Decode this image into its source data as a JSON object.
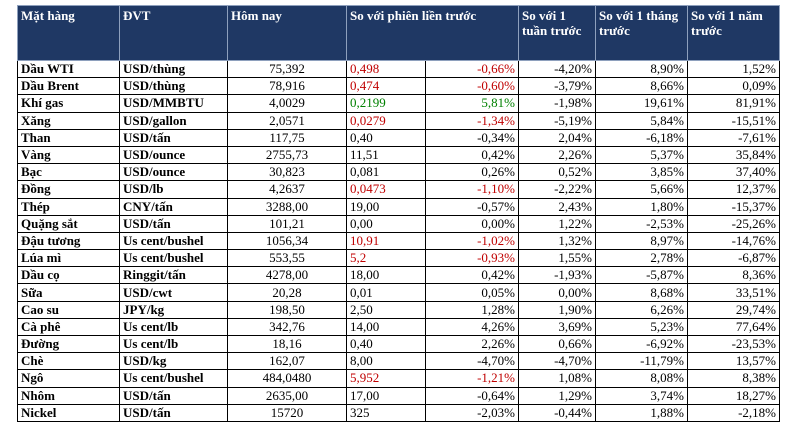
{
  "headers": {
    "item": "Mặt hàng",
    "unit": "ĐVT",
    "today": "Hôm nay",
    "prev_session": "So với phiên liền trước",
    "week": "So với 1 tuần trước",
    "month": "So với 1 tháng trước",
    "year": "So với 1 năm trước"
  },
  "rows": [
    {
      "item": "Dầu WTI",
      "unit": "USD/thùng",
      "today": "75,392",
      "abs": "0,498",
      "abs_color": "neg",
      "pct": "-0,66%",
      "pct_color": "neg",
      "week": "-4,20%",
      "month": "8,90%",
      "year": "1,52%"
    },
    {
      "item": "Dầu Brent",
      "unit": "USD/thùng",
      "today": "78,916",
      "abs": "0,474",
      "abs_color": "neg",
      "pct": "-0,60%",
      "pct_color": "neg",
      "week": "-3,79%",
      "month": "8,66%",
      "year": "0,09%"
    },
    {
      "item": "Khí gas",
      "unit": "USD/MMBTU",
      "today": "4,0029",
      "abs": "0,2199",
      "abs_color": "pos",
      "pct": "5,81%",
      "pct_color": "pos",
      "week": "-1,98%",
      "month": "19,61%",
      "year": "81,91%"
    },
    {
      "item": "Xăng",
      "unit": "USD/gallon",
      "today": "2,0571",
      "abs": "0,0279",
      "abs_color": "neg",
      "pct": "-1,34%",
      "pct_color": "neg",
      "week": "-5,19%",
      "month": "5,84%",
      "year": "-15,51%"
    },
    {
      "item": "Than",
      "unit": "USD/tấn",
      "today": "117,75",
      "abs": "0,40",
      "abs_color": "",
      "pct": "-0,34%",
      "pct_color": "",
      "week": "2,04%",
      "month": "-6,18%",
      "year": "-7,61%"
    },
    {
      "item": "Vàng",
      "unit": "USD/ounce",
      "today": "2755,73",
      "abs": "11,51",
      "abs_color": "",
      "pct": "0,42%",
      "pct_color": "",
      "week": "2,26%",
      "month": "5,37%",
      "year": "35,84%"
    },
    {
      "item": "Bạc",
      "unit": "USD/ounce",
      "today": "30,823",
      "abs": "0,081",
      "abs_color": "",
      "pct": "0,26%",
      "pct_color": "",
      "week": "0,52%",
      "month": "3,85%",
      "year": "37,40%"
    },
    {
      "item": "Đồng",
      "unit": "USD/lb",
      "today": "4,2637",
      "abs": "0,0473",
      "abs_color": "neg",
      "pct": "-1,10%",
      "pct_color": "neg",
      "week": "-2,22%",
      "month": "5,66%",
      "year": "12,37%"
    },
    {
      "item": "Thép",
      "unit": "CNY/tấn",
      "today": "3288,00",
      "abs": "19,00",
      "abs_color": "",
      "pct": "-0,57%",
      "pct_color": "",
      "week": "2,43%",
      "month": "1,80%",
      "year": "-15,37%"
    },
    {
      "item": "Quặng sắt",
      "unit": "USD/tấn",
      "today": "101,21",
      "abs": "0,00",
      "abs_color": "",
      "pct": "0,00%",
      "pct_color": "",
      "week": "1,22%",
      "month": "-2,53%",
      "year": "-25,26%"
    },
    {
      "item": "Đậu tương",
      "unit": "Us cent/bushel",
      "today": "1056,34",
      "abs": "10,91",
      "abs_color": "neg",
      "pct": "-1,02%",
      "pct_color": "neg",
      "week": "1,32%",
      "month": "8,97%",
      "year": "-14,76%"
    },
    {
      "item": "Lúa mì",
      "unit": "Us cent/bushel",
      "today": "553,55",
      "abs": "5,2",
      "abs_color": "neg",
      "pct": "-0,93%",
      "pct_color": "neg",
      "week": "1,55%",
      "month": "2,78%",
      "year": "-6,87%"
    },
    {
      "item": "Dầu cọ",
      "unit": "Ringgit/tấn",
      "today": "4278,00",
      "abs": "18,00",
      "abs_color": "",
      "pct": "0,42%",
      "pct_color": "",
      "week": "-1,93%",
      "month": "-5,87%",
      "year": "8,36%"
    },
    {
      "item": "Sữa",
      "unit": "USD/cwt",
      "today": "20,28",
      "abs": "0,01",
      "abs_color": "",
      "pct": "0,05%",
      "pct_color": "",
      "week": "0,00%",
      "month": "8,68%",
      "year": "33,51%"
    },
    {
      "item": "Cao su",
      "unit": "JPY/kg",
      "today": "198,50",
      "abs": "2,50",
      "abs_color": "",
      "pct": "1,28%",
      "pct_color": "",
      "week": "1,90%",
      "month": "6,26%",
      "year": "29,74%"
    },
    {
      "item": "Cà phê",
      "unit": "Us cent/lb",
      "today": "342,76",
      "abs": "14,00",
      "abs_color": "",
      "pct": "4,26%",
      "pct_color": "",
      "week": "3,69%",
      "month": "5,23%",
      "year": "77,64%"
    },
    {
      "item": "Đường",
      "unit": "Us cent/lb",
      "today": "18,16",
      "abs": "0,40",
      "abs_color": "",
      "pct": "2,26%",
      "pct_color": "",
      "week": "0,66%",
      "month": "-6,92%",
      "year": "-23,53%"
    },
    {
      "item": "Chè",
      "unit": "USD/kg",
      "today": "162,07",
      "abs": "8,00",
      "abs_color": "",
      "pct": "-4,70%",
      "pct_color": "",
      "week": "-4,70%",
      "month": "-11,79%",
      "year": "13,57%"
    },
    {
      "item": "Ngô",
      "unit": "Us cent/bushel",
      "today": "484,0480",
      "abs": "5,952",
      "abs_color": "neg",
      "pct": "-1,21%",
      "pct_color": "neg",
      "week": "1,08%",
      "month": "8,08%",
      "year": "8,38%"
    },
    {
      "item": "Nhôm",
      "unit": "USD/tấn",
      "today": "2635,00",
      "abs": "17,00",
      "abs_color": "",
      "pct": "-0,64%",
      "pct_color": "",
      "week": "1,29%",
      "month": "3,74%",
      "year": "18,27%"
    },
    {
      "item": "Nickel",
      "unit": "USD/tấn",
      "today": "15720",
      "abs": "325",
      "abs_color": "",
      "pct": "-2,03%",
      "pct_color": "",
      "week": "-0,44%",
      "month": "1,88%",
      "year": "-2,18%"
    }
  ]
}
